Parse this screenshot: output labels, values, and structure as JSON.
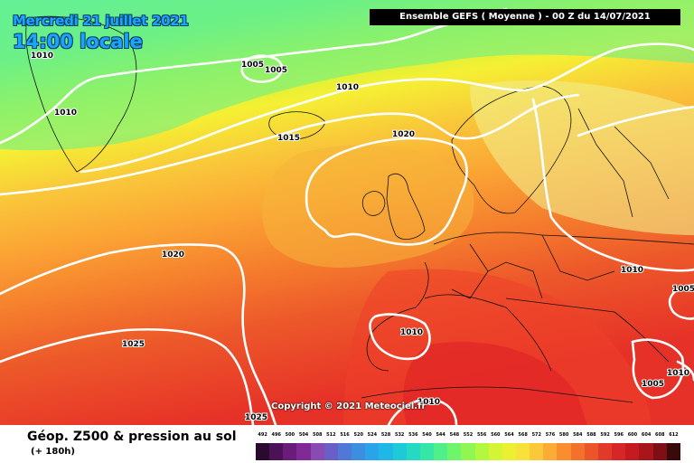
{
  "header": {
    "date_label": "Mercredi 21 juillet 2021",
    "time_label": "14:00 locale",
    "model_label": "Ensemble GEFS  ( Moyenne )  - 00 Z du 14/07/2021"
  },
  "map": {
    "copyright": "Copyright © 2021 Meteociel.fr",
    "isobars": [
      {
        "label": "1005"
      },
      {
        "label": "1005"
      },
      {
        "label": "1010"
      },
      {
        "label": "1010"
      },
      {
        "label": "1010"
      },
      {
        "label": "1010"
      },
      {
        "label": "1010"
      },
      {
        "label": "1010"
      },
      {
        "label": "1015"
      },
      {
        "label": "1020"
      },
      {
        "label": "1020"
      },
      {
        "label": "1025"
      },
      {
        "label": "1025"
      },
      {
        "label": "1005"
      },
      {
        "label": "1005"
      },
      {
        "label": "1010"
      }
    ]
  },
  "footer": {
    "title": "Géop. Z500 & pression au sol",
    "subtitle": "(+ 180h)"
  },
  "legend": {
    "values": [
      "492",
      "496",
      "500",
      "504",
      "508",
      "512",
      "516",
      "520",
      "524",
      "528",
      "532",
      "536",
      "540",
      "544",
      "548",
      "552",
      "556",
      "560",
      "564",
      "568",
      "572",
      "576",
      "580",
      "584",
      "588",
      "592",
      "596",
      "600",
      "604",
      "608",
      "612"
    ],
    "colors": [
      "#2a0a2e",
      "#4b1255",
      "#6a1c7a",
      "#7f2a96",
      "#8a4ab3",
      "#6a5fc7",
      "#5078d6",
      "#3a8fe0",
      "#2aa3e8",
      "#1fb7e6",
      "#1fcad8",
      "#26d9c2",
      "#35e6a6",
      "#4ff08a",
      "#6ef56c",
      "#90f752",
      "#b2f83f",
      "#d4f536",
      "#ecf033",
      "#f8e23a",
      "#fbc83a",
      "#fbac34",
      "#f98e2e",
      "#f4712b",
      "#ec542a",
      "#e23a2a",
      "#d62626",
      "#c71a20",
      "#a8151b",
      "#7e0f14",
      "#3a0a0a"
    ]
  }
}
